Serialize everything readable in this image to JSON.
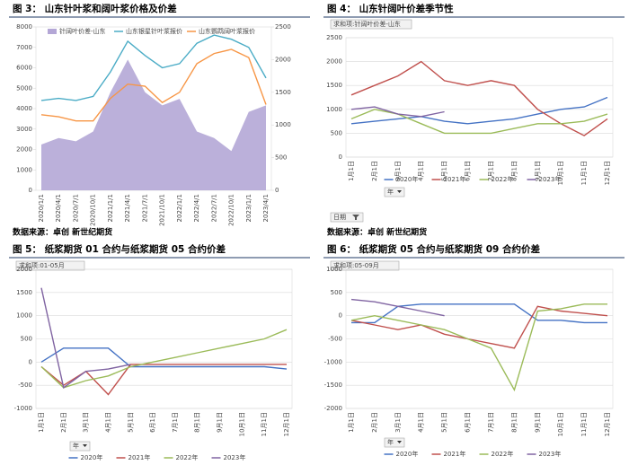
{
  "chart_data": [
    {
      "type": "combo",
      "title": "图 3： 山东针叶浆和阔叶浆价格及价差",
      "categories": [
        "2020/1/1",
        "2020/4/1",
        "2020/7/1",
        "2020/10/1",
        "2021/1/1",
        "2021/4/1",
        "2021/7/1",
        "2021/10/1",
        "2022/1/1",
        "2022/4/1",
        "2022/7/1",
        "2022/10/1",
        "2023/1/1",
        "2023/4/1"
      ],
      "series": [
        {
          "name": "针阔叶价差-山东",
          "kind": "area",
          "axis": "y2",
          "color": "#b4a7d6",
          "values": [
            700,
            800,
            750,
            900,
            1500,
            2000,
            1500,
            1300,
            1400,
            900,
            800,
            600,
            1200,
            1300
          ]
        },
        {
          "name": "山东银星针叶浆报价",
          "kind": "line",
          "color": "#4bacc6",
          "values": [
            4400,
            4500,
            4400,
            4600,
            5800,
            7300,
            6600,
            6000,
            6200,
            7200,
            7600,
            7400,
            7000,
            5500
          ]
        },
        {
          "name": "山东鹦鹉阔叶浆报价",
          "kind": "line",
          "color": "#f79646",
          "values": [
            3700,
            3600,
            3400,
            3400,
            4500,
            5200,
            5100,
            4300,
            4800,
            6200,
            6700,
            6900,
            6500,
            4200
          ]
        }
      ],
      "ylim": [
        0,
        8000
      ],
      "yticks": [
        0,
        1000,
        2000,
        3000,
        4000,
        5000,
        6000,
        7000,
        8000
      ],
      "y2lim": [
        0,
        2500
      ],
      "y2ticks": [
        0,
        500,
        1000,
        1500,
        2000,
        2500
      ],
      "grid": false,
      "legend": "top"
    },
    {
      "type": "line",
      "title": "图 4： 山东针阔叶价差季节性",
      "pivot_label": "求和项:针阔叶价差-山东",
      "filter_label": "年",
      "axis_filter_label": "日期",
      "categories": [
        "1月1日",
        "2月1日",
        "3月1日",
        "4月1日",
        "5月1日",
        "6月1日",
        "7月1日",
        "8月1日",
        "9月1日",
        "10月1日",
        "11月1日",
        "12月1日"
      ],
      "series": [
        {
          "name": "2020年",
          "color": "#4472c4",
          "values": [
            700,
            750,
            800,
            850,
            750,
            700,
            750,
            800,
            900,
            1000,
            1050,
            1250
          ]
        },
        {
          "name": "2021年",
          "color": "#c0504d",
          "values": [
            1300,
            1500,
            1700,
            2000,
            1600,
            1500,
            1600,
            1500,
            1000,
            700,
            450,
            800
          ]
        },
        {
          "name": "2022年",
          "color": "#9bbb59",
          "values": [
            800,
            1000,
            900,
            700,
            500,
            500,
            500,
            600,
            700,
            700,
            750,
            900
          ]
        },
        {
          "name": "2023年",
          "color": "#8064a2",
          "values": [
            1000,
            1050,
            900,
            850,
            950,
            null,
            null,
            null,
            null,
            null,
            null,
            null
          ]
        }
      ],
      "ylim": [
        0,
        2500
      ],
      "yticks": [
        0,
        500,
        1000,
        1500,
        2000,
        2500
      ],
      "grid": true,
      "legend": "bottom"
    },
    {
      "type": "line",
      "title": "图 5： 纸浆期货 01 合约与纸浆期货 05 合约价差",
      "pivot_label": "求和项:01-05月",
      "filter_label": "年",
      "categories": [
        "1月1日",
        "2月1日",
        "3月1日",
        "4月1日",
        "5月1日",
        "6月1日",
        "7月1日",
        "8月1日",
        "9月1日",
        "10月1日",
        "11月1日",
        "12月1日"
      ],
      "series": [
        {
          "name": "2020年",
          "color": "#4472c4",
          "values": [
            0,
            300,
            300,
            300,
            -100,
            -100,
            -100,
            -100,
            -100,
            -100,
            -100,
            -150
          ]
        },
        {
          "name": "2021年",
          "color": "#c0504d",
          "values": [
            -100,
            -500,
            -200,
            -700,
            -50,
            -50,
            -50,
            -50,
            -50,
            -50,
            -50,
            -50
          ]
        },
        {
          "name": "2022年",
          "color": "#9bbb59",
          "values": [
            -100,
            -550,
            -400,
            -300,
            -100,
            0,
            100,
            200,
            300,
            400,
            500,
            700
          ]
        },
        {
          "name": "2023年",
          "color": "#8064a2",
          "values": [
            1600,
            -550,
            -200,
            -150,
            -50,
            null,
            null,
            null,
            null,
            null,
            null,
            null
          ]
        }
      ],
      "ylim": [
        -1000,
        2000
      ],
      "yticks": [
        -1000,
        -500,
        0,
        500,
        1000,
        1500,
        2000
      ],
      "grid": true,
      "legend": "bottom"
    },
    {
      "type": "line",
      "title": "图 6： 纸浆期货 05 合约与纸浆期货 09 合约价差",
      "pivot_label": "求和项:05-09月",
      "filter_label": "年",
      "categories": [
        "1月1日",
        "2月1日",
        "3月1日",
        "4月1日",
        "5月1日",
        "6月1日",
        "7月1日",
        "8月1日",
        "9月1日",
        "10月1日",
        "11月1日",
        "12月1日"
      ],
      "series": [
        {
          "name": "2020年",
          "color": "#4472c4",
          "values": [
            -150,
            -150,
            200,
            250,
            250,
            250,
            250,
            250,
            -100,
            -100,
            -150,
            -150
          ]
        },
        {
          "name": "2021年",
          "color": "#c0504d",
          "values": [
            -100,
            -200,
            -300,
            -200,
            -400,
            -500,
            -600,
            -700,
            200,
            100,
            50,
            0
          ]
        },
        {
          "name": "2022年",
          "color": "#9bbb59",
          "values": [
            -100,
            0,
            -100,
            -200,
            -300,
            -500,
            -700,
            -1600,
            100,
            150,
            250,
            250
          ]
        },
        {
          "name": "2023年",
          "color": "#8064a2",
          "values": [
            350,
            300,
            200,
            100,
            0,
            null,
            null,
            null,
            null,
            null,
            null,
            null
          ]
        }
      ],
      "ylim": [
        -2000,
        1000
      ],
      "yticks": [
        -2000,
        -1500,
        -1000,
        -500,
        0,
        500,
        1000
      ],
      "grid": true,
      "legend": "bottom"
    }
  ],
  "sources": [
    "数据来源：卓创 新世纪期货",
    "数据来源：卓创 新世纪期货"
  ]
}
